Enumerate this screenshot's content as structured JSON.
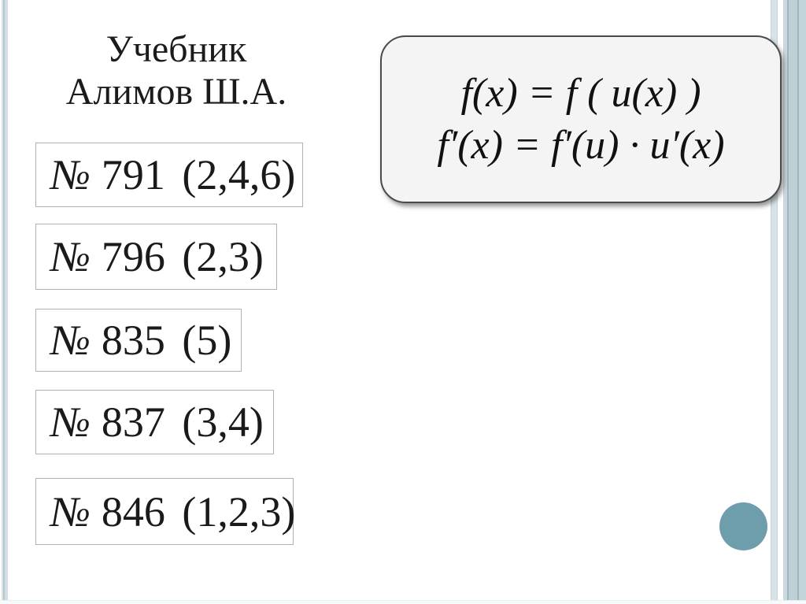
{
  "slide": {
    "title": {
      "line1": "Учебник",
      "line2": "Алимов Ш.А."
    },
    "exercises": [
      {
        "numero": "№",
        "label": "791 (2,4,6)"
      },
      {
        "numero": "№",
        "label": "796 (2,3)"
      },
      {
        "numero": "№",
        "label": "835 (5)"
      },
      {
        "numero": "№",
        "label": "837 (3,4)"
      },
      {
        "numero": "№",
        "label": "846 (1,2,3)"
      }
    ],
    "formula_card": {
      "line1": "f(x) = f ( u(x) )",
      "line2": "f′(x) = f′(u) · u′(x)"
    },
    "colors": {
      "text": "#1a1a1a",
      "exercise_box_border": "#b0b0b0",
      "formula_fill": "#f4f4f4",
      "formula_border": "#4a4a4a",
      "accent_circle": "#6e9dac",
      "stripe_light": "#d3dfe2",
      "stripe_dark": "#9eb6be",
      "stripe_band": "#bed0d6"
    }
  }
}
